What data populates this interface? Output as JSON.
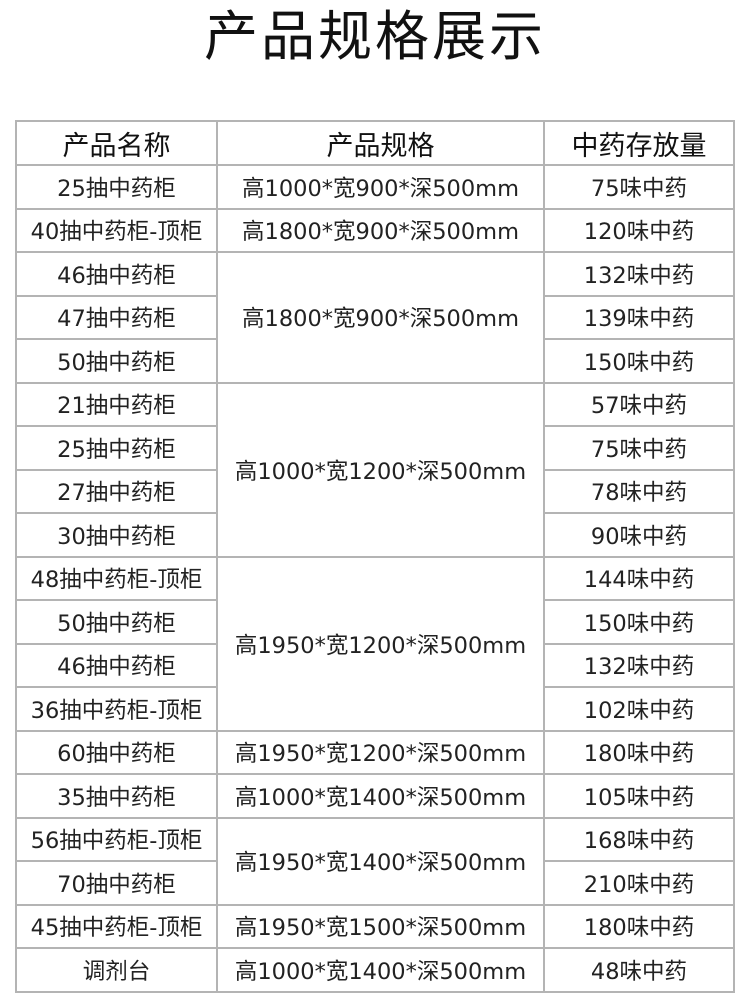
{
  "title": "产品规格展示",
  "headers": [
    "产品名称",
    "产品规格",
    "中药存放量"
  ],
  "groups": [
    {
      "spec": "高1000*宽900*深500mm",
      "items": [
        {
          "name": "25抽中药柜",
          "capacity": "75味中药"
        }
      ]
    },
    {
      "spec": "高1800*宽900*深500mm",
      "items": [
        {
          "name": "40抽中药柜-顶柜",
          "capacity": "120味中药"
        }
      ]
    },
    {
      "spec": "高1800*宽900*深500mm",
      "items": [
        {
          "name": "46抽中药柜",
          "capacity": "132味中药"
        },
        {
          "name": "47抽中药柜",
          "capacity": "139味中药"
        },
        {
          "name": "50抽中药柜",
          "capacity": "150味中药"
        }
      ]
    },
    {
      "spec": "高1000*宽1200*深500mm",
      "items": [
        {
          "name": "21抽中药柜",
          "capacity": "57味中药"
        },
        {
          "name": "25抽中药柜",
          "capacity": "75味中药"
        },
        {
          "name": "27抽中药柜",
          "capacity": "78味中药"
        },
        {
          "name": "30抽中药柜",
          "capacity": "90味中药"
        }
      ]
    },
    {
      "spec": "高1950*宽1200*深500mm",
      "items": [
        {
          "name": "48抽中药柜-顶柜",
          "capacity": "144味中药"
        },
        {
          "name": "50抽中药柜",
          "capacity": "150味中药"
        },
        {
          "name": "46抽中药柜",
          "capacity": "132味中药"
        },
        {
          "name": "36抽中药柜-顶柜",
          "capacity": "102味中药"
        }
      ]
    },
    {
      "spec": "高1950*宽1200*深500mm",
      "items": [
        {
          "name": "60抽中药柜",
          "capacity": "180味中药"
        }
      ]
    },
    {
      "spec": "高1000*宽1400*深500mm",
      "items": [
        {
          "name": "35抽中药柜",
          "capacity": "105味中药"
        }
      ]
    },
    {
      "spec": "高1950*宽1400*深500mm",
      "items": [
        {
          "name": "56抽中药柜-顶柜",
          "capacity": "168味中药"
        },
        {
          "name": "70抽中药柜",
          "capacity": "210味中药"
        }
      ]
    },
    {
      "spec": "高1950*宽1500*深500mm",
      "items": [
        {
          "name": "45抽中药柜-顶柜",
          "capacity": "180味中药"
        }
      ]
    },
    {
      "spec": "高1000*宽1400*深500mm",
      "items": [
        {
          "name": "调剂台",
          "capacity": "48味中药"
        }
      ]
    }
  ]
}
